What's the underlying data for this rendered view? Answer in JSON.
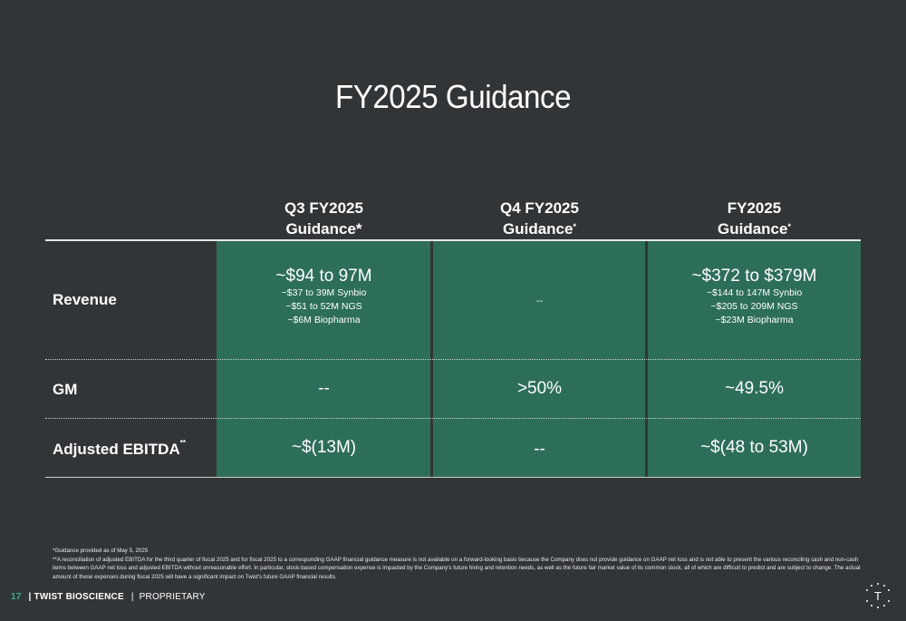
{
  "slide": {
    "title": "FY2025 Guidance",
    "page_number": "17",
    "company": "TWIST BIOSCIENCE",
    "classification": "PROPRIETARY",
    "logo_letter": "T"
  },
  "columns": [
    {
      "line1": "Q3 FY2025",
      "line2": "Guidance*"
    },
    {
      "line1": "Q4 FY2025",
      "line2": "Guidance",
      "sup": "*"
    },
    {
      "line1": "FY2025",
      "line2": "Guidance",
      "sup": "*"
    }
  ],
  "rows": {
    "revenue": {
      "label": "Revenue",
      "q3": {
        "main": "~$94 to 97M",
        "d1": "~$37 to 39M Synbio",
        "d2": "~$51 to 52M NGS",
        "d3": "~$6M Biopharma"
      },
      "q4": "--",
      "fy": {
        "main": "~$372 to $379M",
        "d1": "~$144 to 147M Synbio",
        "d2": "~$205 to 209M NGS",
        "d3": "~$23M Biopharma"
      }
    },
    "gm": {
      "label": "GM",
      "q3": "--",
      "q4": ">50%",
      "fy": "~49.5%"
    },
    "ebitda": {
      "label": "Adjusted EBITDA",
      "sup": "**",
      "q3": "~$(13M)",
      "q4": "--",
      "fy": "~$(48 to 53M)"
    }
  },
  "footnotes": {
    "f1": "*Guidance provided as of May 5, 2025",
    "f2": "**A reconciliation of adjusted EBITDA for the third quarter of fiscal 2025 and for fiscal 2025 to a corresponding GAAP financial guidance measure is not available on a forward-looking basis because the Company does not provide guidance on GAAP net loss and is not able to present the various reconciling cash and non-cash items between GAAP net loss and adjusted EBITDA without unreasonable effort. In particular, stock-based compensation expense is impacted by the Company's future hiring and retention needs, as well as the future fair market value of its common stock, all of which are difficult to predict and are subject to change. The actual amount of these expenses during fiscal 2025 will have a significant impact on Twist's future GAAP financial results."
  }
}
